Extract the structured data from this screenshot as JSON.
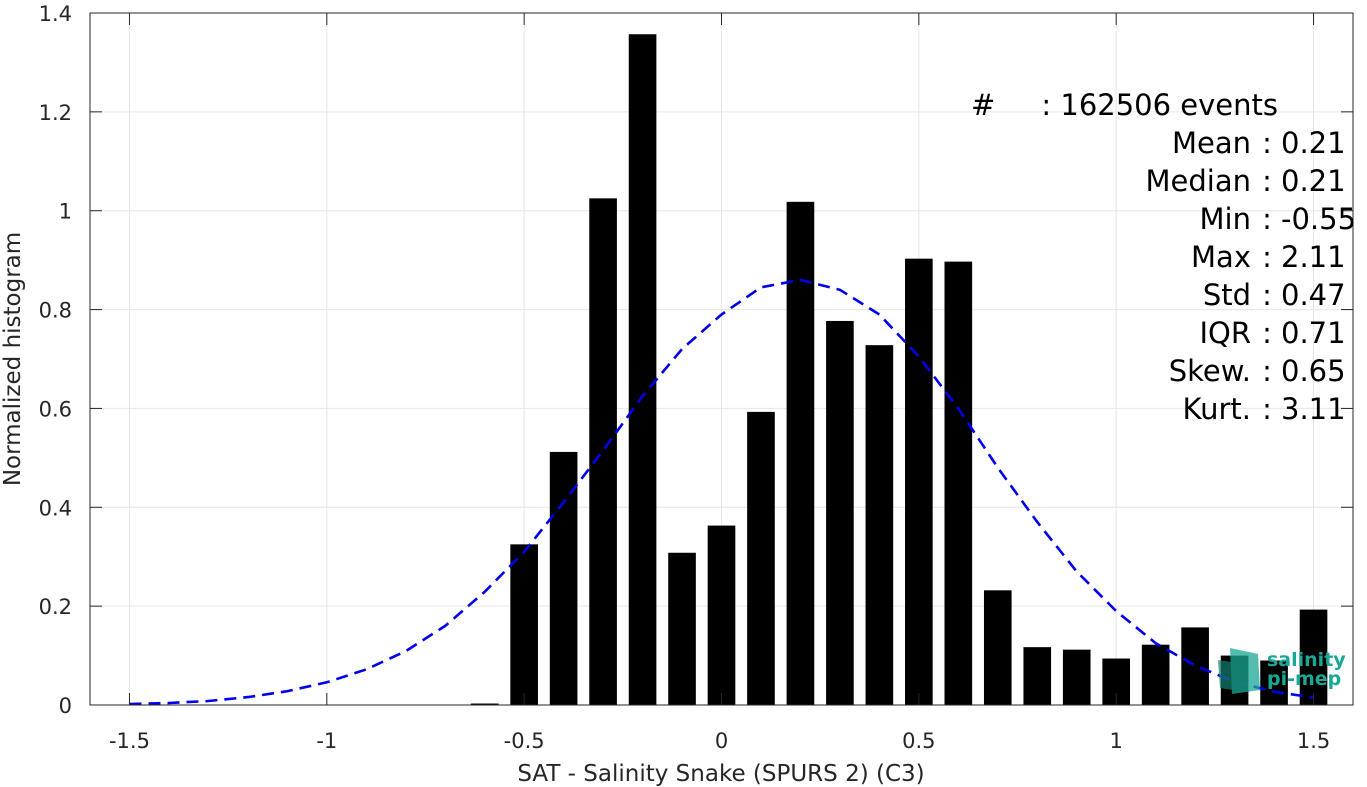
{
  "chart_data": {
    "type": "bar",
    "xlabel": "SAT - Salinity Snake (SPURS 2) (C3)",
    "ylabel": "Normalized histogram",
    "xlim": [
      -1.6,
      1.6
    ],
    "ylim": [
      0,
      1.4
    ],
    "xticks": [
      -1.5,
      -1,
      -0.5,
      0,
      0.5,
      1,
      1.5
    ],
    "xtick_labels": [
      "-1.5",
      "-1",
      "-0.5",
      "0",
      "0.5",
      "1",
      "1.5"
    ],
    "yticks": [
      0,
      0.2,
      0.4,
      0.6,
      0.8,
      1,
      1.2,
      1.4
    ],
    "ytick_labels": [
      "0",
      "0.2",
      "0.4",
      "0.6",
      "0.8",
      "1",
      "1.2",
      "1.4"
    ],
    "grid": true,
    "bar_color": "#000000",
    "bar_width": 0.07,
    "bins": [
      -0.6,
      -0.5,
      -0.4,
      -0.3,
      -0.2,
      -0.1,
      0.0,
      0.1,
      0.2,
      0.3,
      0.4,
      0.5,
      0.6,
      0.7,
      0.8,
      0.9,
      1.0,
      1.1,
      1.2,
      1.3,
      1.4,
      1.5
    ],
    "values": [
      0.003,
      0.325,
      0.512,
      1.025,
      1.357,
      0.308,
      0.363,
      0.593,
      1.018,
      0.777,
      0.728,
      0.903,
      0.897,
      0.232,
      0.117,
      0.112,
      0.094,
      0.122,
      0.157,
      0.1,
      0.09,
      0.193
    ],
    "fit_curve": {
      "style": "dashed",
      "color": "#0000ee",
      "x": [
        -1.5,
        -1.4,
        -1.3,
        -1.2,
        -1.1,
        -1.0,
        -0.9,
        -0.8,
        -0.7,
        -0.6,
        -0.5,
        -0.4,
        -0.3,
        -0.2,
        -0.1,
        0.0,
        0.1,
        0.2,
        0.3,
        0.4,
        0.5,
        0.6,
        0.7,
        0.8,
        0.9,
        1.0,
        1.1,
        1.2,
        1.3,
        1.4,
        1.5
      ],
      "y": [
        0.002,
        0.004,
        0.008,
        0.016,
        0.028,
        0.046,
        0.072,
        0.109,
        0.16,
        0.229,
        0.31,
        0.41,
        0.515,
        0.625,
        0.72,
        0.79,
        0.845,
        0.86,
        0.84,
        0.79,
        0.705,
        0.6,
        0.48,
        0.37,
        0.27,
        0.19,
        0.125,
        0.08,
        0.047,
        0.027,
        0.015
      ]
    },
    "stats_lines": [
      "#  : 162506 events",
      "Mean : 0.21",
      "Median : 0.21",
      "Min : -0.55",
      "Max : 2.11",
      "Std : 0.47",
      "IQR : 0.71",
      "Skew. : 0.65",
      "Kurt. : 3.11"
    ]
  },
  "logo": {
    "line1": "salinity",
    "line2": "pi-mep",
    "color": "#1aa896"
  }
}
